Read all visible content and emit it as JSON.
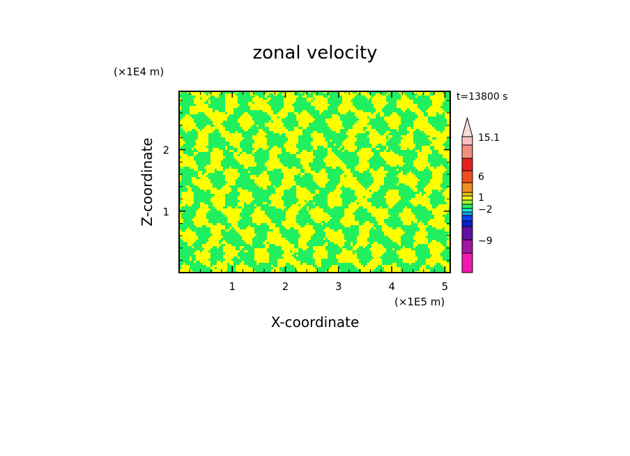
{
  "chart_data": {
    "type": "heatmap",
    "title": "zonal velocity",
    "xlabel": "X-coordinate",
    "ylabel": "Z-coordinate",
    "x_unit": "(×1E5 m)",
    "y_unit": "(×1E4 m)",
    "time_label": "t=13800 s",
    "xlim": [
      0,
      5.1
    ],
    "ylim": [
      0,
      2.95
    ],
    "x_ticks": [
      1,
      2,
      3,
      4,
      5
    ],
    "y_ticks": [
      1,
      2
    ],
    "colorbar": {
      "levels": [
        {
          "color": "#f018b0"
        },
        {
          "color": "#a018a0"
        },
        {
          "color": "#6010a0"
        },
        {
          "color": "#1020c8"
        },
        {
          "color": "#1040f0"
        },
        {
          "color": "#20a0f0"
        },
        {
          "color": "#20f0d0"
        },
        {
          "color": "#20f060"
        },
        {
          "color": "#a0f030"
        },
        {
          "color": "#f0f020"
        },
        {
          "color": "#f0c020"
        },
        {
          "color": "#f09020"
        },
        {
          "color": "#f05020"
        },
        {
          "color": "#e82020"
        },
        {
          "color": "#f09080"
        },
        {
          "color": "#f8c0c0"
        },
        {
          "color": "#f4e0d8"
        }
      ],
      "labels": [
        {
          "text": "15.1",
          "value": 15.1
        },
        {
          "text": "6",
          "value": 6
        },
        {
          "text": "1",
          "value": 1
        },
        {
          "text": "−2",
          "value": -2
        },
        {
          "text": "−9",
          "value": -9
        }
      ]
    },
    "field_colors": {
      "positive": "#ffff00",
      "negative": "#20f060"
    }
  }
}
